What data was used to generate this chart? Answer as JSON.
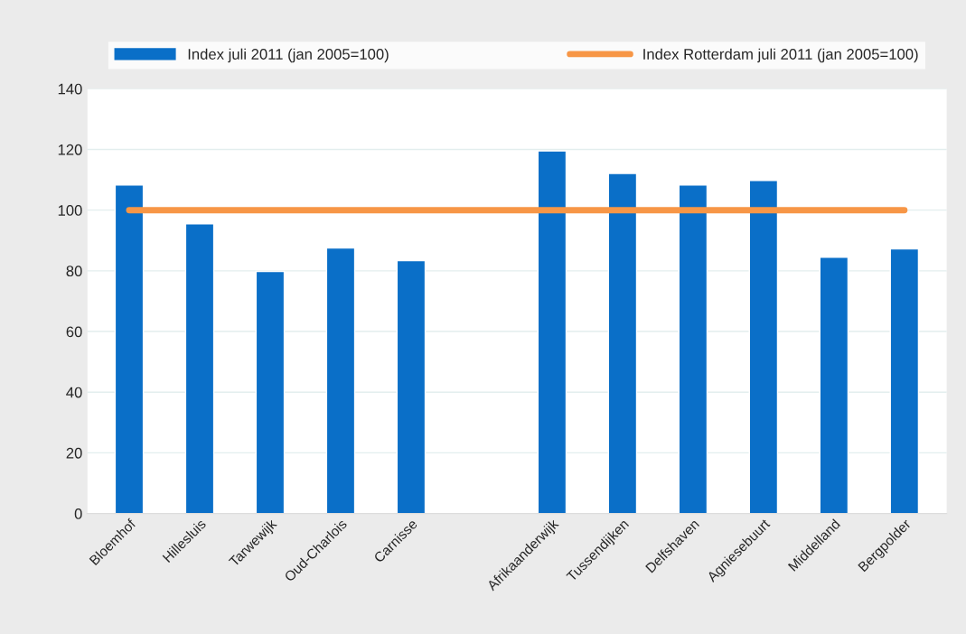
{
  "chart_data": {
    "type": "bar",
    "categories": [
      "Bloemhof",
      "Hillesluis",
      "Tarwewijk",
      "Oud-Charlois",
      "Carnisse",
      null,
      "Afrikaanderwijk",
      "Tussendijken",
      "Delfshaven",
      "Agniesebuurt",
      "Middelland",
      "Bergpolder"
    ],
    "series": [
      {
        "name": "Index juli 2011 (jan 2005=100)",
        "color": "#0a6fc8",
        "values": [
          108.3,
          95.5,
          79.8,
          87.5,
          83.4,
          null,
          119.5,
          112.1,
          108.3,
          109.8,
          84.5,
          87.2
        ]
      },
      {
        "name": "Index Rotterdam juli 2011 (jan 2005=100)",
        "type": "line",
        "color": "#f79646",
        "values": [
          100,
          100,
          100,
          100,
          100,
          100,
          100,
          100,
          100,
          100,
          100,
          100
        ]
      }
    ],
    "ylim": [
      0,
      140
    ],
    "yticks": [
      0,
      20,
      40,
      60,
      80,
      100,
      120,
      140
    ],
    "grid": "y",
    "legend": "top"
  }
}
